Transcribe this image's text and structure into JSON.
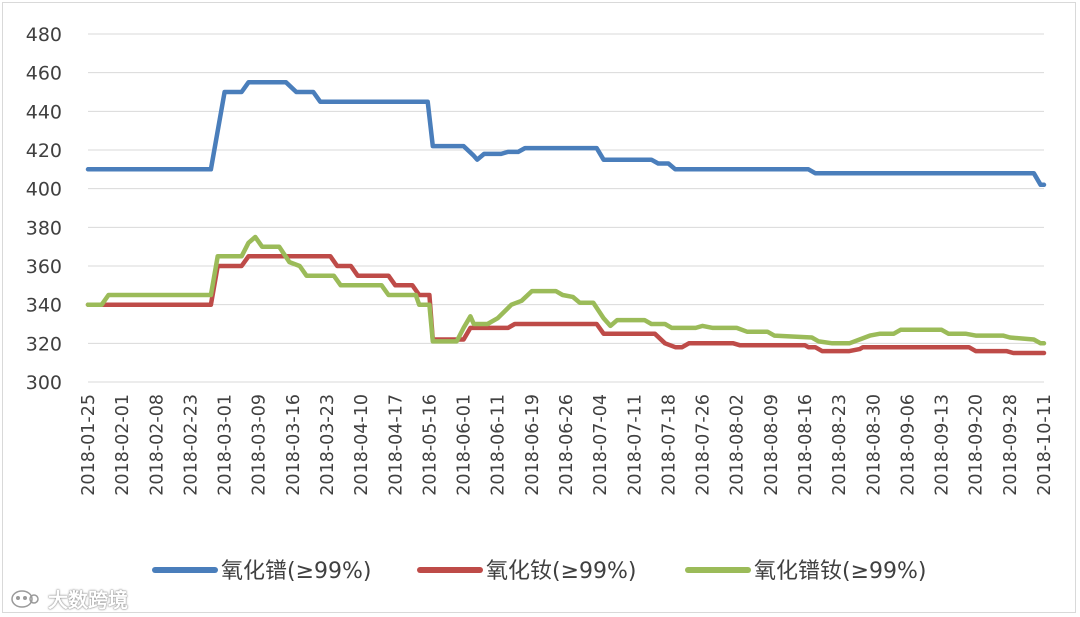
{
  "chart_data": {
    "type": "line",
    "title": "",
    "xlabel": "",
    "ylabel": "",
    "ylim": [
      300,
      480
    ],
    "y_ticks": [
      "300",
      "320",
      "340",
      "360",
      "380",
      "400",
      "420",
      "440",
      "460",
      "480"
    ],
    "categories": [
      "2018-01-25",
      "2018-02-01",
      "2018-02-08",
      "2018-02-23",
      "2018-03-01",
      "2018-03-09",
      "2018-03-16",
      "2018-03-23",
      "2018-04-10",
      "2018-04-17",
      "2018-05-16",
      "2018-06-01",
      "2018-06-11",
      "2018-06-19",
      "2018-06-26",
      "2018-07-04",
      "2018-07-11",
      "2018-07-18",
      "2018-07-26",
      "2018-08-02",
      "2018-08-09",
      "2018-08-16",
      "2018-08-23",
      "2018-08-30",
      "2018-09-06",
      "2018-09-13",
      "2018-09-20",
      "2018-09-28",
      "2018-10-11"
    ],
    "grid": true,
    "legend_position": "bottom",
    "series": [
      {
        "name": "氧化镨(≥99%)",
        "color": "#4a7ebb",
        "points": [
          [
            0,
            410
          ],
          [
            3.6,
            410
          ],
          [
            4.0,
            450
          ],
          [
            4.5,
            450
          ],
          [
            4.7,
            455
          ],
          [
            5.8,
            455
          ],
          [
            6.1,
            450
          ],
          [
            6.6,
            450
          ],
          [
            6.8,
            445
          ],
          [
            9.95,
            445
          ],
          [
            10.1,
            422
          ],
          [
            11.0,
            422
          ],
          [
            11.3,
            417
          ],
          [
            11.4,
            415
          ],
          [
            11.6,
            418
          ],
          [
            12.1,
            418
          ],
          [
            12.3,
            419
          ],
          [
            12.6,
            419
          ],
          [
            12.8,
            421
          ],
          [
            14.9,
            421
          ],
          [
            15.1,
            415
          ],
          [
            16.5,
            415
          ],
          [
            16.7,
            413
          ],
          [
            17.0,
            413
          ],
          [
            17.2,
            410
          ],
          [
            21.1,
            410
          ],
          [
            21.3,
            408
          ],
          [
            27.7,
            408
          ],
          [
            27.9,
            402
          ],
          [
            28.0,
            402
          ]
        ]
      },
      {
        "name": "氧化钕(≥99%)",
        "color": "#be4b48",
        "points": [
          [
            0,
            340
          ],
          [
            3.6,
            340
          ],
          [
            3.8,
            360
          ],
          [
            4.5,
            360
          ],
          [
            4.7,
            365
          ],
          [
            7.1,
            365
          ],
          [
            7.3,
            360
          ],
          [
            7.7,
            360
          ],
          [
            7.9,
            355
          ],
          [
            8.8,
            355
          ],
          [
            9.0,
            350
          ],
          [
            9.5,
            350
          ],
          [
            9.7,
            345
          ],
          [
            10.0,
            345
          ],
          [
            10.1,
            322
          ],
          [
            11.0,
            322
          ],
          [
            11.2,
            328
          ],
          [
            12.3,
            328
          ],
          [
            12.5,
            330
          ],
          [
            14.9,
            330
          ],
          [
            15.1,
            325
          ],
          [
            16.6,
            325
          ],
          [
            16.9,
            320
          ],
          [
            17.2,
            318
          ],
          [
            17.4,
            318
          ],
          [
            17.6,
            320
          ],
          [
            18.9,
            320
          ],
          [
            19.1,
            319
          ],
          [
            21.0,
            319
          ],
          [
            21.1,
            318
          ],
          [
            21.3,
            318
          ],
          [
            21.5,
            316
          ],
          [
            22.3,
            316
          ],
          [
            22.6,
            317
          ],
          [
            22.7,
            318
          ],
          [
            25.8,
            318
          ],
          [
            26.0,
            316
          ],
          [
            26.9,
            316
          ],
          [
            27.1,
            315
          ],
          [
            28.0,
            315
          ]
        ]
      },
      {
        "name": "氧化镨钕(≥99%)",
        "color": "#9bbb59",
        "points": [
          [
            0,
            340
          ],
          [
            0.4,
            340
          ],
          [
            0.6,
            345
          ],
          [
            3.6,
            345
          ],
          [
            3.8,
            365
          ],
          [
            4.5,
            365
          ],
          [
            4.7,
            372
          ],
          [
            4.9,
            375
          ],
          [
            5.1,
            370
          ],
          [
            5.6,
            370
          ],
          [
            5.9,
            362
          ],
          [
            6.2,
            360
          ],
          [
            6.4,
            355
          ],
          [
            7.2,
            355
          ],
          [
            7.4,
            350
          ],
          [
            8.6,
            350
          ],
          [
            8.8,
            345
          ],
          [
            9.6,
            345
          ],
          [
            9.7,
            340
          ],
          [
            10.0,
            340
          ],
          [
            10.1,
            321
          ],
          [
            10.8,
            321
          ],
          [
            11.0,
            328
          ],
          [
            11.2,
            334
          ],
          [
            11.3,
            330
          ],
          [
            11.7,
            330
          ],
          [
            12.0,
            333
          ],
          [
            12.4,
            340
          ],
          [
            12.7,
            342
          ],
          [
            13.0,
            347
          ],
          [
            13.7,
            347
          ],
          [
            13.9,
            345
          ],
          [
            14.2,
            344
          ],
          [
            14.4,
            341
          ],
          [
            14.8,
            341
          ],
          [
            15.1,
            333
          ],
          [
            15.3,
            329
          ],
          [
            15.5,
            332
          ],
          [
            16.3,
            332
          ],
          [
            16.5,
            330
          ],
          [
            16.9,
            330
          ],
          [
            17.1,
            328
          ],
          [
            17.8,
            328
          ],
          [
            18.0,
            329
          ],
          [
            18.3,
            328
          ],
          [
            19.0,
            328
          ],
          [
            19.3,
            326
          ],
          [
            19.9,
            326
          ],
          [
            20.1,
            324
          ],
          [
            21.2,
            323
          ],
          [
            21.4,
            321
          ],
          [
            21.8,
            320
          ],
          [
            22.3,
            320
          ],
          [
            22.6,
            322
          ],
          [
            22.9,
            324
          ],
          [
            23.2,
            325
          ],
          [
            23.6,
            325
          ],
          [
            23.8,
            327
          ],
          [
            25.0,
            327
          ],
          [
            25.2,
            325
          ],
          [
            25.7,
            325
          ],
          [
            26.0,
            324
          ],
          [
            26.8,
            324
          ],
          [
            27.0,
            323
          ],
          [
            27.7,
            322
          ],
          [
            27.9,
            320
          ],
          [
            28.0,
            320
          ]
        ]
      }
    ]
  },
  "watermark": {
    "text": "大数跨境"
  }
}
